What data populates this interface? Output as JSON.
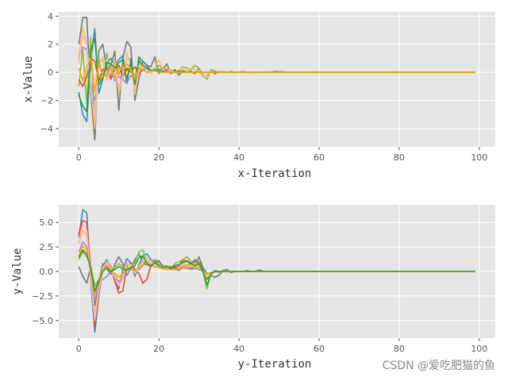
{
  "watermark": "CSDN @爱吃肥猫的鱼",
  "colors": {
    "plot_bg": "#E5E5E5",
    "grid": "#FFFFFF",
    "palette": [
      "#348ABD",
      "#E24A33",
      "#988ED5",
      "#777777",
      "#FBC15E",
      "#8EBA42",
      "#FFB5B8",
      "#FFA500",
      "#2CA02C",
      "#F4A582"
    ]
  },
  "chart_data": [
    {
      "type": "line",
      "xlabel": "x-Iteration",
      "ylabel": "x-Value",
      "xlim": [
        -5,
        104
      ],
      "ylim": [
        -5.3,
        4.3
      ],
      "xticks": [
        0,
        20,
        40,
        60,
        80,
        100
      ],
      "xtick_labels": [
        "0",
        "20",
        "40",
        "60",
        "80",
        "100"
      ],
      "yticks": [
        -4,
        -2,
        0,
        2,
        4
      ],
      "ytick_labels": [
        "−4",
        "−2",
        "0",
        "2",
        "4"
      ],
      "grid": true,
      "iterations": 100,
      "series": [
        {
          "color": "#777777",
          "values": [
            2.0,
            3.9,
            3.9,
            -1.5,
            -4.8,
            1.5,
            2.0,
            0.2,
            0.5,
            1.5,
            -2.7,
            1.0,
            2.2,
            1.8,
            -2.0,
            -0.5,
            0.8,
            0.5,
            0.4,
            1.1,
            -0.1,
            0.2,
            0.6,
            -0.1,
            0.2,
            -0.2,
            0.1,
            0.0,
            0.1,
            -0.1,
            0.3,
            -0.3,
            -0.2,
            0.1,
            -0.1,
            0.05,
            0.0,
            0.0,
            0.05,
            0.0,
            0.02,
            0.05,
            0.0,
            -0.02,
            0.02,
            0.02,
            0.0,
            0.0,
            0.02,
            0.06,
            0.05,
            0.04,
            0.0,
            0.0,
            0.0,
            0.0
          ]
        },
        {
          "color": "#348ABD",
          "values": [
            -1.4,
            -3.0,
            -3.5,
            0.8,
            3.1,
            -1.5,
            -0.5,
            0.6,
            1.0,
            0.5,
            0.9,
            1.2,
            -0.8,
            1.0,
            -1.2,
            1.1,
            0.8,
            0.5,
            0.1,
            0.3,
            0.2,
            0.3,
            0.2,
            0.1,
            0.1,
            0.0,
            0.1,
            0.05,
            0.0,
            0.0,
            0.0,
            0.0,
            0.0,
            0.0,
            0.0,
            0.0,
            0.0,
            0.0,
            0.0,
            0.0,
            0.0,
            0.0
          ]
        },
        {
          "color": "#8EBA42",
          "values": [
            -1.0,
            1.6,
            -2.2,
            2.5,
            -3.6,
            1.0,
            -0.5,
            1.4,
            -0.4,
            0.9,
            -0.2,
            0.6,
            0.1,
            0.4,
            -0.3,
            0.8,
            0.1,
            0.3,
            0.2,
            0.1,
            0.5,
            0.3,
            0.1,
            0.2,
            0.0,
            0.1,
            0.4,
            0.3,
            0.2,
            0.5,
            0.3,
            -0.2,
            -0.5,
            0.2,
            0.1,
            0.0,
            0.05,
            0.02,
            0.0,
            0.0,
            0.0,
            0.0
          ]
        },
        {
          "color": "#FBC15E",
          "values": [
            1.2,
            3.2,
            2.0,
            -0.8,
            -4.0,
            0.5,
            1.1,
            -0.4,
            0.3,
            0.8,
            -1.5,
            -0.3,
            1.4,
            0.5,
            -1.6,
            0.2,
            0.6,
            0.3,
            -0.1,
            0.4,
            0.9,
            0.2,
            0.3,
            0.1,
            0.0,
            0.2,
            0.2,
            0.1,
            0.3,
            0.2,
            0.1,
            -0.3,
            -0.2,
            0.1,
            0.0,
            0.0,
            0.0
          ]
        },
        {
          "color": "#E24A33",
          "values": [
            -0.5,
            -1.0,
            -0.3,
            1.0,
            0.8,
            -0.6,
            0.2,
            0.4,
            -0.5,
            0.2,
            0.5,
            -0.3,
            0.3,
            0.0,
            0.4,
            -0.1,
            0.2,
            0.3,
            0.1,
            0.2,
            0.1,
            0.2,
            0.1,
            0.0,
            0.0,
            0.1,
            0.0,
            0.0,
            0.0,
            0.0
          ]
        },
        {
          "color": "#988ED5",
          "values": [
            1.0,
            1.8,
            1.6,
            -0.8,
            -2.0,
            -0.6,
            -0.4,
            0.2,
            0.4,
            -0.6,
            -0.3,
            -0.5,
            -0.8,
            -0.2,
            -0.6,
            0.3,
            0.2,
            0.0,
            0.1,
            0.2,
            0.1,
            0.0,
            0.1,
            0.0,
            0.0
          ]
        },
        {
          "color": "#FFB5B8",
          "values": [
            0.6,
            2.6,
            1.9,
            -1.3,
            -3.2,
            0.6,
            0.9,
            -0.6,
            0.2,
            0.5,
            -1.1,
            -0.2,
            1.0,
            0.6,
            -1.2,
            0.0,
            0.4,
            0.2,
            0.0,
            0.3,
            0.1,
            0.2,
            0.0,
            0.1,
            0.0,
            0.0
          ]
        },
        {
          "color": "#2CA02C",
          "values": [
            -1.6,
            -2.4,
            -2.8,
            1.6,
            2.4,
            -0.9,
            -0.4,
            0.7,
            0.6,
            0.3,
            0.7,
            0.9,
            -0.5,
            0.7,
            -0.9,
            0.9,
            0.5,
            0.3,
            0.1,
            0.2,
            0.1,
            0.1,
            0.0,
            0.0,
            0.0
          ]
        },
        {
          "color": "#FFA500",
          "values": [
            0.3,
            -0.6,
            0.4,
            1.0,
            -1.4,
            0.7,
            -0.3,
            -0.2,
            0.4,
            -0.4,
            0.3,
            0.1,
            0.6,
            0.2,
            -0.5,
            0.3,
            0.2,
            0.0,
            0.1,
            0.1,
            0.0,
            0.0
          ]
        }
      ]
    },
    {
      "type": "line",
      "xlabel": "y-Iteration",
      "ylabel": "y-Value",
      "xlim": [
        -5,
        104
      ],
      "ylim": [
        -6.8,
        6.8
      ],
      "xticks": [
        0,
        20,
        40,
        60,
        80,
        100
      ],
      "xtick_labels": [
        "0",
        "20",
        "40",
        "60",
        "80",
        "100"
      ],
      "yticks": [
        -5.0,
        -2.5,
        0.0,
        2.5,
        5.0
      ],
      "ytick_labels": [
        "−5.0",
        "−2.5",
        "0.0",
        "2.5",
        "5.0"
      ],
      "grid": true,
      "iterations": 100,
      "series": [
        {
          "color": "#348ABD",
          "values": [
            3.5,
            6.3,
            6.0,
            -1.0,
            -6.2,
            -2.5,
            0.5,
            1.2,
            0.0,
            -0.5,
            -1.8,
            0.2,
            1.3,
            0.9,
            -0.5,
            0.6,
            1.6,
            1.8,
            1.2,
            1.0,
            0.5,
            0.6,
            0.4,
            0.5,
            0.3,
            0.2,
            1.0,
            0.6,
            0.8,
            1.0,
            0.8,
            0.2,
            -0.8,
            -0.3,
            0.1,
            0.0,
            0.0,
            0.0,
            0.0,
            0.0
          ]
        },
        {
          "color": "#E24A33",
          "values": [
            3.8,
            5.2,
            5.0,
            0.2,
            -5.6,
            -2.2,
            0.2,
            1.0,
            0.5,
            -1.0,
            -2.2,
            -2.0,
            0.6,
            0.9,
            0.2,
            -0.2,
            -1.2,
            -0.8,
            0.6,
            1.2,
            1.0,
            0.6,
            0.5,
            0.4,
            0.3,
            0.6,
            1.2,
            1.0,
            0.8,
            1.2,
            1.0,
            0.4,
            -0.6,
            -0.2,
            0.0,
            0.0,
            0.0,
            0.0
          ]
        },
        {
          "color": "#777777",
          "values": [
            0.5,
            -0.5,
            -1.2,
            0.5,
            -3.5,
            -1.0,
            0.8,
            0.3,
            -0.3,
            0.7,
            1.5,
            0.8,
            -0.4,
            0.3,
            1.2,
            1.8,
            1.0,
            0.7,
            0.5,
            0.8,
            1.1,
            0.5,
            0.3,
            0.4,
            0.5,
            0.2,
            0.6,
            0.4,
            0.3,
            0.5,
            1.5,
            0.4,
            -0.2,
            -0.4,
            -0.6,
            -0.4,
            0.1,
            0.2,
            -0.1,
            0.0,
            0.0,
            0.0,
            0.1,
            0.0,
            0.0,
            0.15,
            0.05,
            0.0,
            0.0,
            0.0
          ]
        },
        {
          "color": "#8EBA42",
          "values": [
            1.2,
            2.0,
            1.5,
            0.5,
            -1.5,
            -0.8,
            0.3,
            0.6,
            0.2,
            0.4,
            0.8,
            0.5,
            0.2,
            0.5,
            0.9,
            2.0,
            2.2,
            1.0,
            0.8,
            1.2,
            0.7,
            0.5,
            0.6,
            0.3,
            0.8,
            1.0,
            1.2,
            1.5,
            1.0,
            0.8,
            1.0,
            0.0,
            -1.8,
            -0.2,
            0.0,
            -0.1,
            0.0,
            0.0,
            0.0,
            0.0
          ]
        },
        {
          "color": "#FBC15E",
          "values": [
            2.8,
            4.2,
            3.6,
            -0.5,
            -4.5,
            -1.8,
            0.4,
            0.9,
            0.2,
            -0.3,
            -1.2,
            -0.4,
            0.8,
            0.6,
            0.0,
            0.4,
            1.2,
            1.4,
            0.9,
            0.8,
            0.6,
            0.5,
            0.4,
            0.3,
            0.2,
            0.4,
            0.9,
            0.7,
            0.6,
            0.8,
            0.6,
            0.1,
            -0.6,
            -0.2,
            0.0,
            0.0,
            0.0
          ]
        },
        {
          "color": "#988ED5",
          "values": [
            2.0,
            3.0,
            2.5,
            -0.2,
            -3.0,
            -1.2,
            -0.8,
            -0.5,
            0.0,
            -0.6,
            -1.0,
            -0.6,
            -0.3,
            0.2,
            0.0,
            0.2,
            0.6,
            0.8,
            0.6,
            0.5,
            0.4,
            0.3,
            0.2,
            0.3,
            0.2,
            0.1,
            0.4,
            0.3,
            0.2,
            0.3,
            0.2,
            0.0,
            -0.3,
            -0.1,
            0.0,
            0.0,
            0.0
          ]
        },
        {
          "color": "#FFB5B8",
          "values": [
            3.0,
            4.8,
            4.2,
            -0.7,
            -5.0,
            -2.0,
            0.3,
            1.0,
            0.3,
            -0.6,
            -1.5,
            -0.8,
            0.9,
            0.7,
            -0.2,
            0.3,
            1.0,
            1.2,
            0.8,
            0.7,
            0.5,
            0.4,
            0.3,
            0.3,
            0.2,
            0.3,
            0.7,
            0.5,
            0.5,
            0.7,
            0.5,
            0.1,
            -0.4,
            -0.1,
            0.0,
            0.0
          ]
        },
        {
          "color": "#FFA500",
          "values": [
            1.6,
            2.6,
            2.2,
            0.0,
            -2.4,
            -0.9,
            0.2,
            0.5,
            0.1,
            -0.2,
            -0.6,
            -0.2,
            0.4,
            0.4,
            0.1,
            0.3,
            0.7,
            0.8,
            0.6,
            0.5,
            0.4,
            0.3,
            0.3,
            0.2,
            0.2,
            0.3,
            0.5,
            0.4,
            0.4,
            0.5,
            0.4,
            0.1,
            -0.3,
            -0.1,
            0.0,
            0.0
          ]
        },
        {
          "color": "#2CA02C",
          "values": [
            1.4,
            2.2,
            1.8,
            0.3,
            -2.0,
            -1.0,
            0.0,
            0.4,
            0.0,
            0.2,
            0.5,
            0.3,
            0.1,
            0.4,
            0.6,
            1.4,
            1.6,
            0.8,
            0.6,
            0.9,
            0.6,
            0.4,
            0.5,
            0.3,
            0.6,
            0.7,
            0.9,
            1.1,
            0.8,
            0.6,
            0.8,
            0.0,
            -1.4,
            -0.2,
            0.0,
            0.0,
            0.0
          ]
        }
      ]
    }
  ]
}
